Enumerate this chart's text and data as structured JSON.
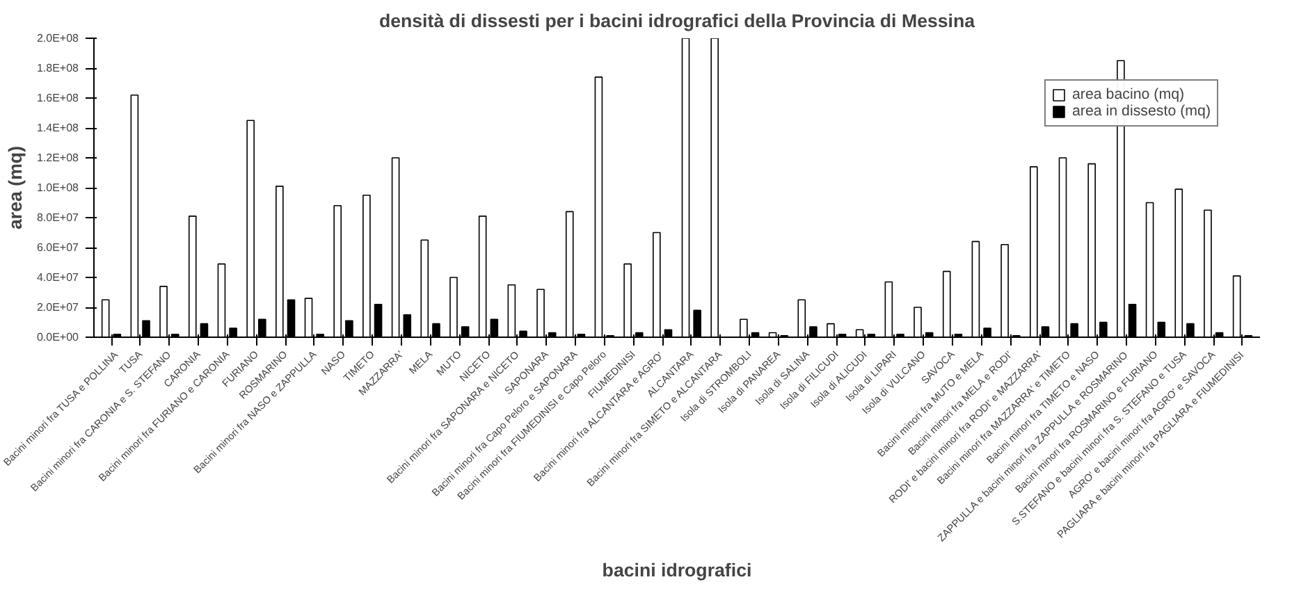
{
  "chart_data": {
    "type": "bar",
    "title": "densità di dissesti per i bacini idrografici della Provincia di Messina",
    "xlabel": "bacini idrografici",
    "ylabel": "area (mq)",
    "categories": [
      "Bacini minori fra TUSA e POLLINA",
      "TUSA",
      "Bacini minori fra CARONIA e S. STEFANO",
      "CARONIA",
      "Bacini minori fra FURIANO e CARONIA",
      "FURIANO",
      "ROSMARINO",
      "Bacini minori fra NASO e ZAPPULLA",
      "NASO",
      "TIMETO",
      "MAZZARRA'",
      "MELA",
      "MUTO",
      "NICETO",
      "Bacini minori fra SAPONARA e NICETO",
      "SAPONARA",
      "Bacini minori fra Capo Peloro e SAPONARA",
      "Bacini minori fra FIUMEDINISI e Capo Peloro",
      "FIUMEDINISI",
      "Bacini minori fra ALCANTARA e AGRO'",
      "ALCANTARA",
      "Bacini minori fra SIMETO e ALCANTARA",
      "Isola di STROMBOLI",
      "Isola di PANAREA",
      "Isola di SALINA",
      "Isola di FILICUDI",
      "Isola di ALICUDI",
      "Isola di LIPARI",
      "Isola di VULCANO",
      "SAVOCA",
      "Bacini minori fra MUTO e MELA",
      "Bacini minori fra MELA e RODI'",
      "RODI' e bacini minori fra RODI' e MAZZARRA'",
      "Bacini minori fra MAZZARRA' e TIMETO",
      "Bacini minori fra TIMETO e NASO",
      "ZAPPULLA e bacini minori fra ZAPPULLA e ROSMARINO",
      "Bacini minori fra ROSMARINO e FURIANO",
      "S.STEFANO e bacini minori fra S. STEFANO e TUSA",
      "AGRO' e bacini minori fra AGRO' e SAVOCA",
      "PAGLIARA e bacini minori fra PAGLIARA e FIUMEDINISI"
    ],
    "series": [
      {
        "name": "area bacino (mq)",
        "color": "#ffffff",
        "values": [
          25000000,
          162000000,
          34000000,
          81000000,
          49000000,
          145000000,
          101000000,
          26000000,
          88000000,
          95000000,
          120000000,
          65000000,
          40000000,
          81000000,
          35000000,
          32000000,
          84000000,
          174000000,
          49000000,
          70000000,
          200000000,
          200000000,
          12000000,
          3000000,
          25000000,
          9000000,
          5000000,
          37000000,
          20000000,
          44000000,
          64000000,
          62000000,
          114000000,
          120000000,
          116000000,
          185000000,
          90000000,
          99000000,
          85000000,
          41000000
        ]
      },
      {
        "name": "area in dissesto (mq)",
        "color": "#000000",
        "values": [
          2000000,
          11000000,
          2000000,
          9000000,
          6000000,
          12000000,
          25000000,
          2000000,
          11000000,
          22000000,
          15000000,
          9000000,
          7000000,
          12000000,
          4000000,
          3000000,
          2000000,
          1000000,
          3000000,
          5000000,
          18000000,
          0,
          3000000,
          1000000,
          7000000,
          2000000,
          2000000,
          2000000,
          3000000,
          2000000,
          6000000,
          1000000,
          7000000,
          9000000,
          10000000,
          22000000,
          10000000,
          9000000,
          3000000,
          1000000
        ]
      }
    ],
    "ylim": [
      0,
      200000000
    ],
    "yticks": [
      {
        "value": 0,
        "label": "0.0E+00"
      },
      {
        "value": 20000000,
        "label": "2.0E+07"
      },
      {
        "value": 40000000,
        "label": "4.0E+07"
      },
      {
        "value": 60000000,
        "label": "6.0E+07"
      },
      {
        "value": 80000000,
        "label": "8.0E+07"
      },
      {
        "value": 100000000,
        "label": "1.0E+08"
      },
      {
        "value": 120000000,
        "label": "1.2E+08"
      },
      {
        "value": 140000000,
        "label": "1.4E+08"
      },
      {
        "value": 160000000,
        "label": "1.6E+08"
      },
      {
        "value": 180000000,
        "label": "1.8E+08"
      },
      {
        "value": 200000000,
        "label": "2.0E+08"
      }
    ],
    "grid": false,
    "legend": "top right"
  }
}
